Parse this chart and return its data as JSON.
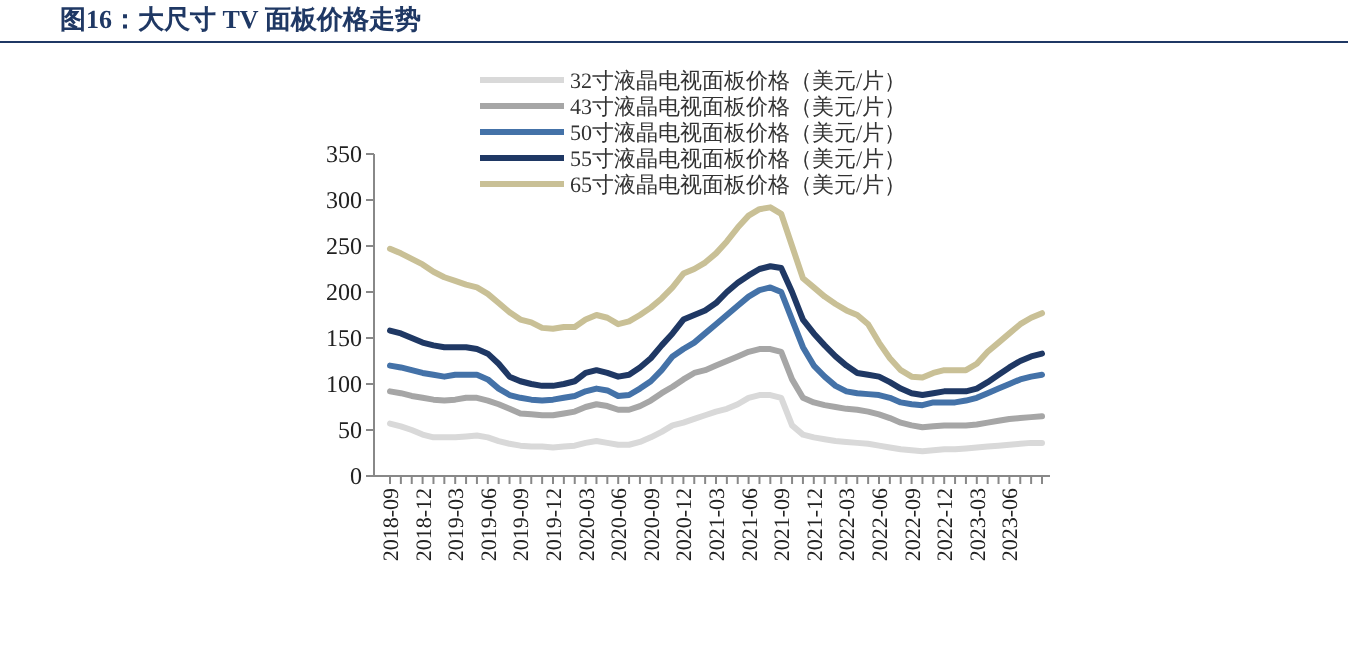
{
  "chart_data": {
    "type": "line",
    "title": "图16：大尺寸 TV 面板价格走势",
    "categories": [
      "2018-09",
      null,
      null,
      "2018-12",
      null,
      null,
      "2019-03",
      null,
      null,
      "2019-06",
      null,
      null,
      "2019-09",
      null,
      null,
      "2019-12",
      null,
      null,
      "2020-03",
      null,
      null,
      "2020-06",
      null,
      null,
      "2020-09",
      null,
      null,
      "2020-12",
      null,
      null,
      "2021-03",
      null,
      null,
      "2021-06",
      null,
      null,
      "2021-09",
      null,
      null,
      "2021-12",
      null,
      null,
      "2022-03",
      null,
      null,
      "2022-06",
      null,
      null,
      "2022-09",
      null,
      null,
      "2022-12",
      null,
      null,
      "2023-03",
      null,
      null,
      "2023-06",
      null,
      null,
      null
    ],
    "ylim": [
      0,
      350
    ],
    "yticks": [
      0,
      50,
      100,
      150,
      200,
      250,
      300,
      350
    ],
    "grid": false,
    "legend": "top",
    "marker": "none",
    "line_style": "solid",
    "series": [
      {
        "name": "32寸液晶电视面板价格（美元/片）",
        "color": "#d9d9d9",
        "values": [
          57,
          54,
          50,
          45,
          42,
          42,
          42,
          43,
          44,
          42,
          38,
          35,
          33,
          32,
          32,
          31,
          32,
          33,
          36,
          38,
          36,
          34,
          34,
          37,
          42,
          48,
          55,
          58,
          62,
          66,
          70,
          73,
          78,
          85,
          88,
          88,
          85,
          55,
          45,
          42,
          40,
          38,
          37,
          36,
          35,
          33,
          31,
          29,
          28,
          27,
          28,
          29,
          29,
          30,
          31,
          32,
          33,
          34,
          35,
          36,
          36
        ]
      },
      {
        "name": "43寸液晶电视面板价格（美元/片）",
        "color": "#a6a6a6",
        "values": [
          92,
          90,
          87,
          85,
          83,
          82,
          83,
          85,
          85,
          82,
          78,
          73,
          68,
          67,
          66,
          66,
          68,
          70,
          75,
          78,
          76,
          72,
          72,
          76,
          82,
          90,
          97,
          105,
          112,
          115,
          120,
          125,
          130,
          135,
          138,
          138,
          135,
          105,
          85,
          80,
          77,
          75,
          73,
          72,
          70,
          67,
          63,
          58,
          55,
          53,
          54,
          55,
          55,
          55,
          56,
          58,
          60,
          62,
          63,
          64,
          65
        ]
      },
      {
        "name": "50寸液晶电视面板价格（美元/片）",
        "color": "#4472a8",
        "values": [
          120,
          118,
          115,
          112,
          110,
          108,
          110,
          110,
          110,
          105,
          95,
          88,
          85,
          83,
          82,
          83,
          85,
          87,
          92,
          95,
          93,
          87,
          88,
          95,
          103,
          115,
          130,
          138,
          145,
          155,
          165,
          175,
          185,
          195,
          202,
          205,
          200,
          170,
          140,
          120,
          108,
          98,
          92,
          90,
          89,
          88,
          85,
          80,
          78,
          77,
          80,
          80,
          80,
          82,
          85,
          90,
          95,
          100,
          105,
          108,
          110
        ]
      },
      {
        "name": "55寸液晶电视面板价格（美元/片）",
        "color": "#1f3864",
        "values": [
          158,
          155,
          150,
          145,
          142,
          140,
          140,
          140,
          138,
          133,
          122,
          108,
          103,
          100,
          98,
          98,
          100,
          103,
          112,
          115,
          112,
          108,
          110,
          118,
          128,
          142,
          155,
          170,
          175,
          180,
          188,
          200,
          210,
          218,
          225,
          228,
          226,
          200,
          170,
          155,
          142,
          130,
          120,
          112,
          110,
          108,
          102,
          95,
          90,
          88,
          90,
          92,
          92,
          92,
          95,
          102,
          110,
          118,
          125,
          130,
          133
        ]
      },
      {
        "name": "65寸液晶电视面板价格（美元/片）",
        "color": "#c9c096",
        "values": [
          247,
          242,
          236,
          230,
          222,
          216,
          212,
          208,
          205,
          198,
          188,
          178,
          170,
          167,
          161,
          160,
          162,
          162,
          170,
          175,
          172,
          165,
          168,
          175,
          183,
          193,
          205,
          220,
          225,
          232,
          242,
          255,
          270,
          283,
          290,
          292,
          285,
          250,
          215,
          205,
          195,
          187,
          180,
          175,
          165,
          145,
          128,
          115,
          108,
          107,
          112,
          115,
          115,
          115,
          122,
          135,
          145,
          155,
          165,
          172,
          177
        ]
      }
    ]
  }
}
